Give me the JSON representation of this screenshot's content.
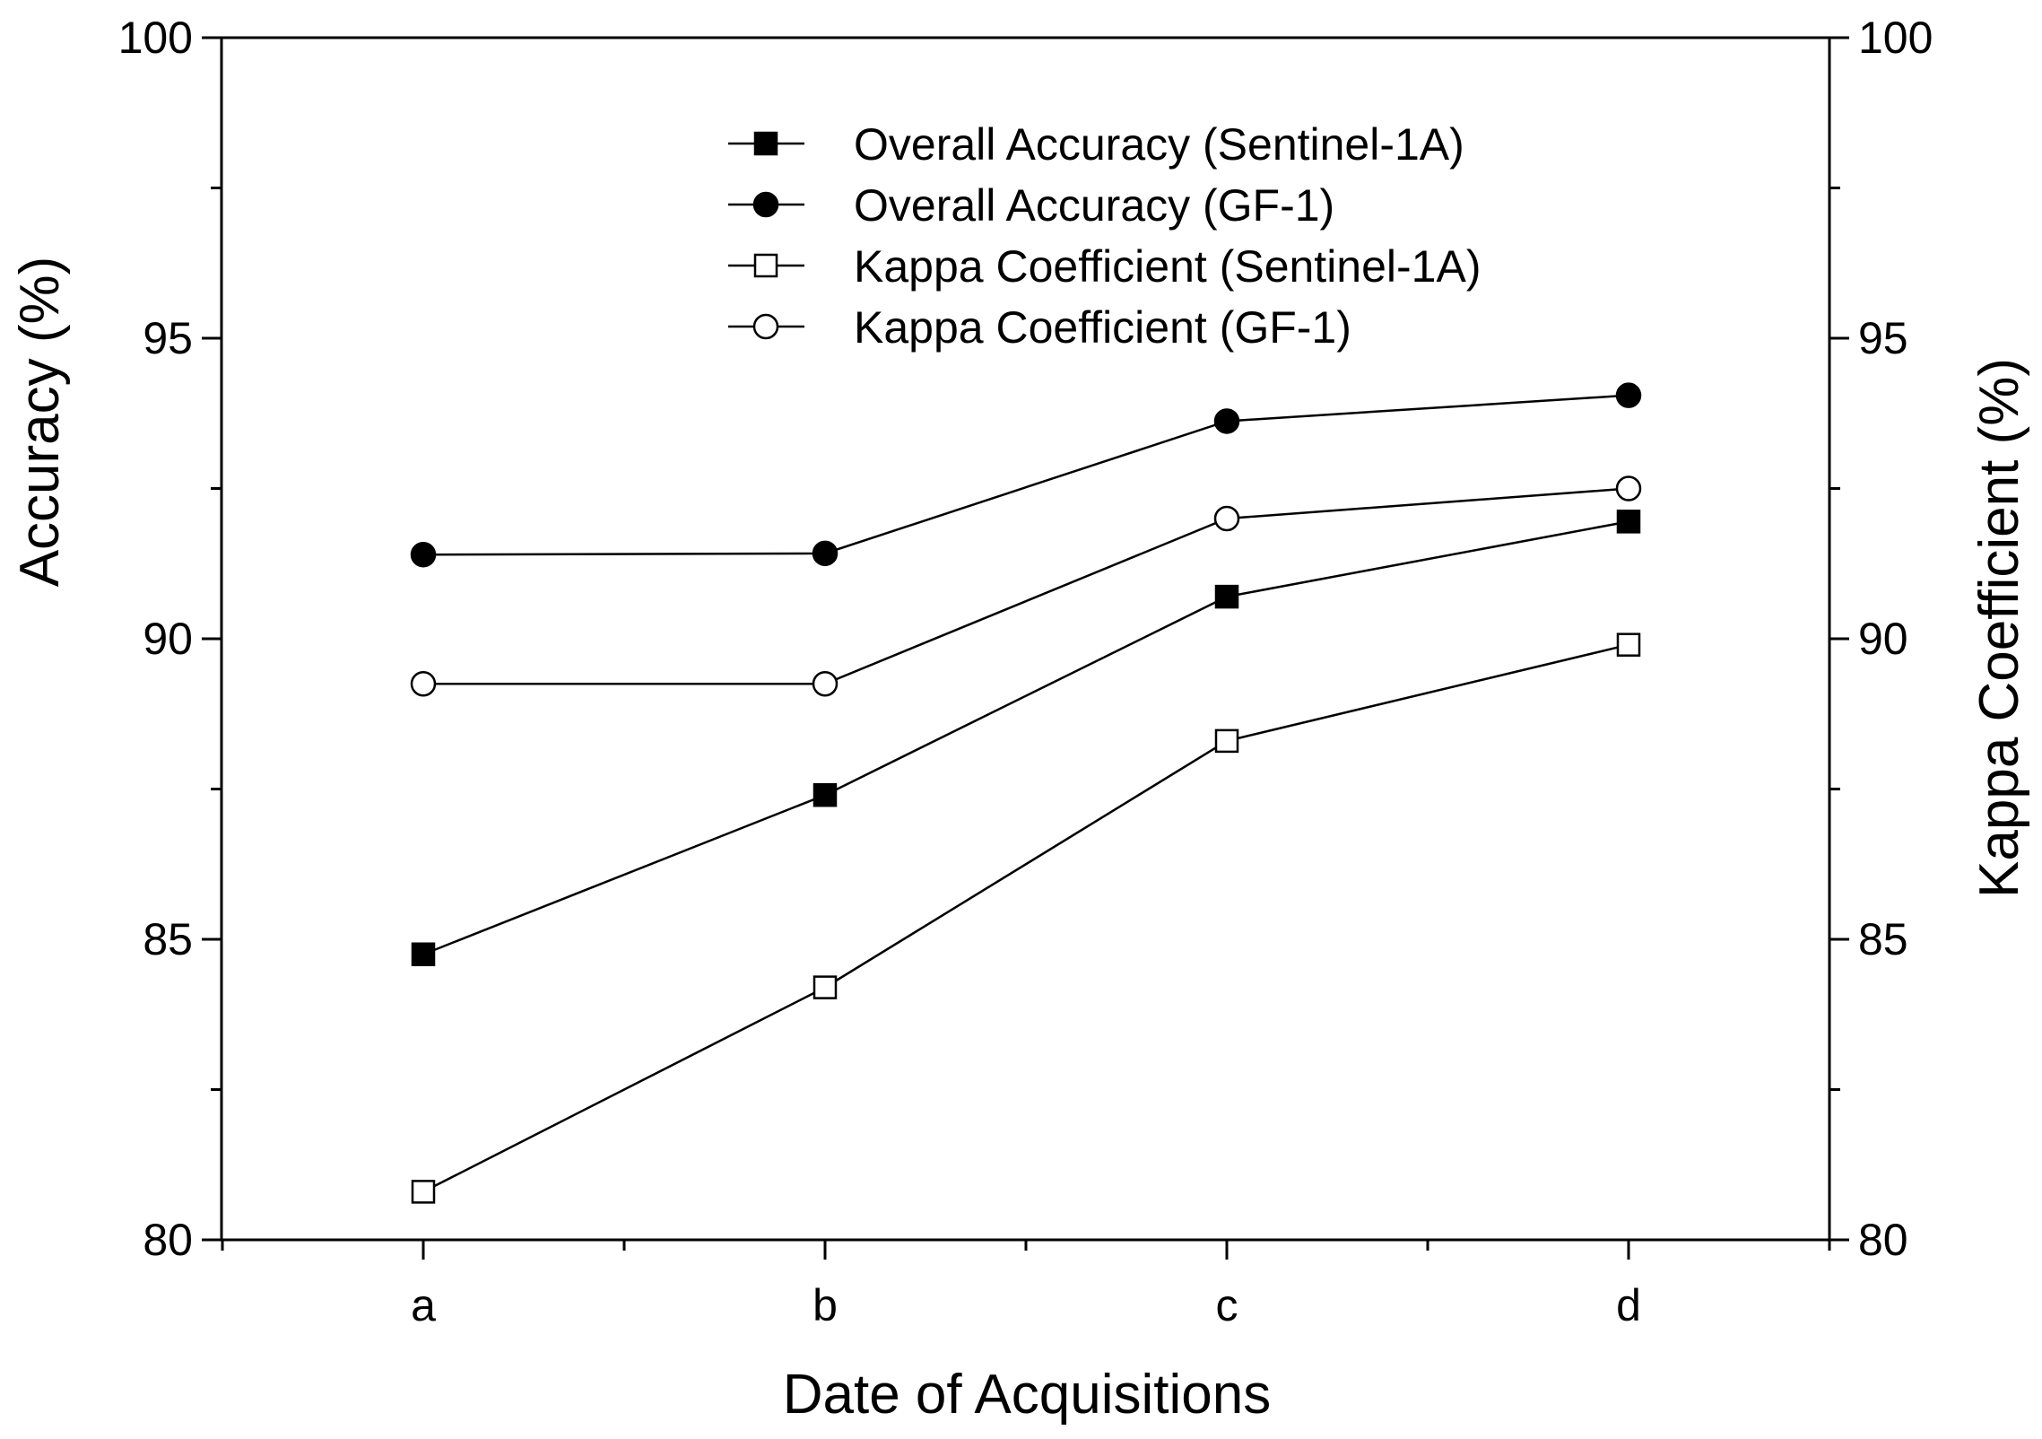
{
  "chart_data": {
    "type": "line",
    "categories": [
      "a",
      "b",
      "c",
      "d"
    ],
    "xlabel": "Date of Acquisitions",
    "ylabel": "Accuracy (%)",
    "y2label": "Kappa Coefficient (%)",
    "ylim": [
      80,
      100
    ],
    "y2lim": [
      80,
      100
    ],
    "yticks": [
      80,
      85,
      90,
      95,
      100
    ],
    "y2ticks": [
      80,
      85,
      90,
      95,
      100
    ],
    "grid": false,
    "legend_position": "top-center",
    "series": [
      {
        "name": "Overall Accuracy (Sentinel-1A)",
        "marker": "square-filled",
        "axis": "left",
        "values": [
          84.75,
          87.4,
          90.7,
          91.95
        ]
      },
      {
        "name": "Overall Accuracy (GF-1)",
        "marker": "circle-filled",
        "axis": "left",
        "values": [
          91.4,
          91.42,
          93.62,
          94.05
        ]
      },
      {
        "name": "Kappa Coefficient (Sentinel-1A)",
        "marker": "square-open",
        "axis": "right",
        "values": [
          80.8,
          84.2,
          88.3,
          89.9
        ]
      },
      {
        "name": "Kappa Coefficient (GF-1)",
        "marker": "circle-open",
        "axis": "right",
        "values": [
          89.25,
          89.25,
          92.0,
          92.5
        ]
      }
    ]
  }
}
